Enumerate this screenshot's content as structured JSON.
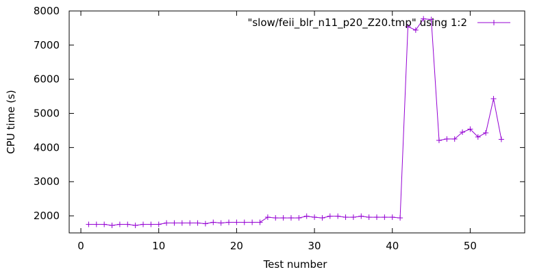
{
  "chart_data": {
    "type": "line",
    "title": "",
    "xlabel": "Test number",
    "ylabel": "CPU time (s)",
    "xlim": [
      -1.5,
      57
    ],
    "ylim": [
      1500,
      8000
    ],
    "xticks": [
      0,
      10,
      20,
      30,
      40,
      50
    ],
    "yticks": [
      2000,
      3000,
      4000,
      5000,
      6000,
      7000,
      8000
    ],
    "grid": false,
    "legend_position": "top-right",
    "series": [
      {
        "name": "\"slow/feii_blr_n11_p20_Z20.tmp\" using 1:2",
        "color": "#9400d3",
        "marker": "plus",
        "x": [
          1,
          2,
          3,
          4,
          5,
          6,
          7,
          8,
          9,
          10,
          11,
          12,
          13,
          14,
          15,
          16,
          17,
          18,
          19,
          20,
          21,
          22,
          23,
          24,
          25,
          26,
          27,
          28,
          29,
          30,
          31,
          32,
          33,
          34,
          35,
          36,
          37,
          38,
          39,
          40,
          41,
          42,
          43,
          44,
          45,
          46,
          47,
          48,
          49,
          50,
          51,
          52,
          53,
          54
        ],
        "y": [
          1750,
          1750,
          1750,
          1720,
          1750,
          1750,
          1720,
          1750,
          1750,
          1750,
          1790,
          1790,
          1790,
          1790,
          1790,
          1770,
          1810,
          1790,
          1810,
          1810,
          1810,
          1810,
          1810,
          1960,
          1940,
          1940,
          1940,
          1940,
          1990,
          1960,
          1940,
          1990,
          1990,
          1960,
          1960,
          1990,
          1960,
          1960,
          1960,
          1960,
          1940,
          7540,
          7440,
          7770,
          7750,
          4210,
          4250,
          4250,
          4450,
          4540,
          4310,
          4430,
          5430,
          4240
        ]
      }
    ]
  }
}
